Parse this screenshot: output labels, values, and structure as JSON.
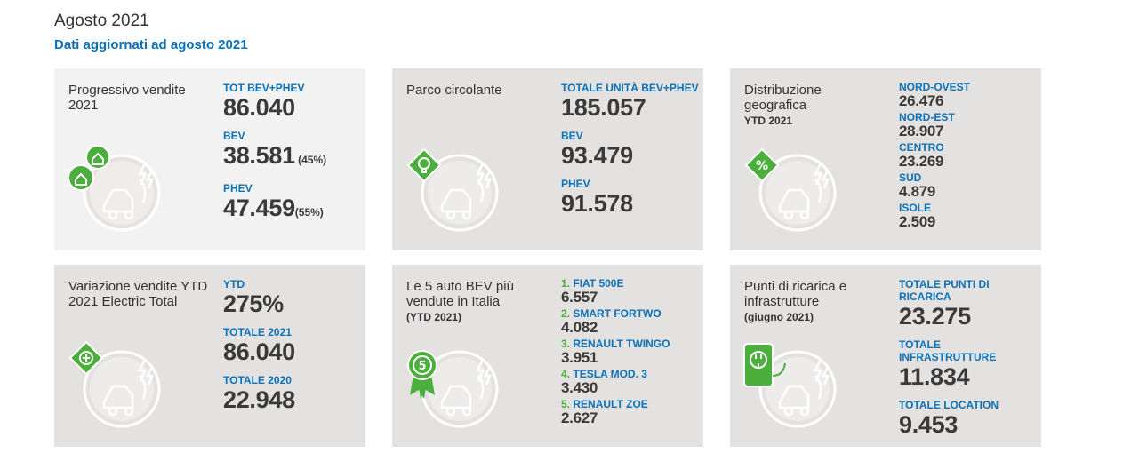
{
  "header": {
    "title": "Agosto 2021",
    "subtitle": "Dati aggiornati ad agosto 2021"
  },
  "cards": {
    "progressivo": {
      "title": "Progressivo vendite 2021",
      "icon": "recycle-home-tag-icon",
      "stats": [
        {
          "label": "TOT BEV+PHEV",
          "value": "86.040",
          "suffix": ""
        },
        {
          "label": "BEV",
          "value": "38.581",
          "suffix": " (45%)"
        },
        {
          "label": "PHEV",
          "value": "47.459",
          "suffix": "(55%)"
        }
      ]
    },
    "parco": {
      "title": "Parco circolante",
      "icon": "lightbulb-tag-icon",
      "stats": [
        {
          "label": "TOTALE UNITÀ BEV+PHEV",
          "value": "185.057"
        },
        {
          "label": "BEV",
          "value": "93.479"
        },
        {
          "label": "PHEV",
          "value": "91.578"
        }
      ]
    },
    "distribuzione": {
      "title": "Distribuzione geografica",
      "note": "YTD 2021",
      "icon": "percent-tag-icon",
      "stats": [
        {
          "label": "NORD-OVEST",
          "value": "26.476"
        },
        {
          "label": "NORD-EST",
          "value": "28.907"
        },
        {
          "label": "CENTRO",
          "value": "23.269"
        },
        {
          "label": "SUD",
          "value": "4.879"
        },
        {
          "label": "ISOLE",
          "value": "2.509"
        }
      ]
    },
    "variazione": {
      "title": "Variazione vendite YTD 2021 Electric Total",
      "icon": "plus-tag-icon",
      "stats": [
        {
          "label": "YTD",
          "value": "275%"
        },
        {
          "label": "TOTALE 2021",
          "value": "86.040"
        },
        {
          "label": "TOTALE 2020",
          "value": "22.948"
        }
      ]
    },
    "top5": {
      "title": "Le 5 auto BEV più vendute in Italia",
      "note": "(YTD 2021)",
      "icon": "award-badge-5-icon",
      "stats": [
        {
          "rank": "1.",
          "label": "FIAT 500E",
          "value": "6.557"
        },
        {
          "rank": "2.",
          "label": "SMART FORTWO",
          "value": "4.082"
        },
        {
          "rank": "3.",
          "label": "RENAULT TWINGO",
          "value": "3.951"
        },
        {
          "rank": "4.",
          "label": "TESLA MOD. 3",
          "value": "3.430"
        },
        {
          "rank": "5.",
          "label": "RENAULT ZOE",
          "value": "2.627"
        }
      ]
    },
    "ricarica": {
      "title": "Punti di ricarica e infrastrutture",
      "note": "(giugno 2021)",
      "icon": "charging-plug-icon",
      "stats": [
        {
          "label": "TOTALE PUNTI DI RICARICA",
          "value": "23.275"
        },
        {
          "label": "TOTALE INFRASTRUTTURE",
          "value": "11.834"
        },
        {
          "label": "TOTALE LOCATION",
          "value": "9.453"
        }
      ]
    }
  },
  "colors": {
    "accent_blue": "#0a72b8",
    "accent_green": "#4caf3d",
    "card_light": "#f2f2f2",
    "card_dark": "#e4e2e0"
  }
}
